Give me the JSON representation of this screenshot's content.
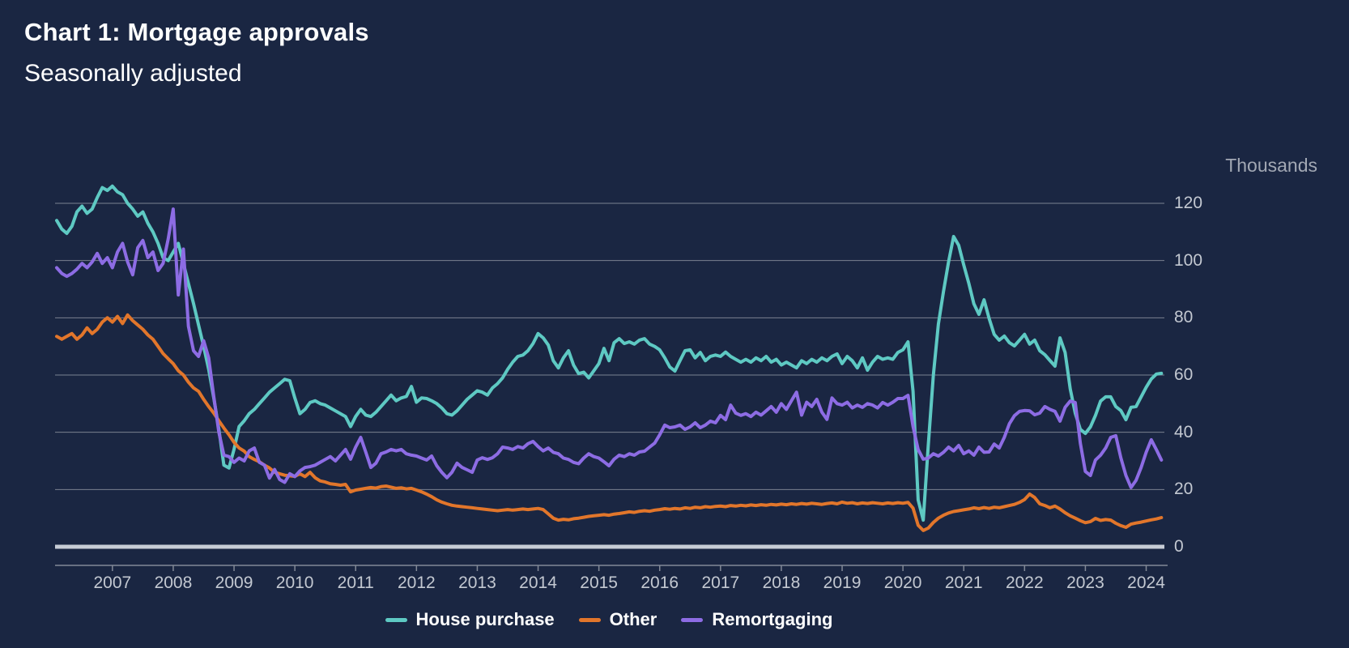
{
  "title": "Chart 1: Mortgage approvals",
  "subtitle": "Seasonally adjusted",
  "y_axis": {
    "unit_label": "Thousands",
    "ticks": [
      0,
      20,
      40,
      60,
      80,
      100,
      120
    ]
  },
  "x_axis": {
    "years": [
      2007,
      2008,
      2009,
      2010,
      2011,
      2012,
      2013,
      2014,
      2015,
      2016,
      2017,
      2018,
      2019,
      2020,
      2021,
      2022,
      2023,
      2024
    ]
  },
  "legend": [
    {
      "label": "House purchase",
      "color": "#5ec9c3"
    },
    {
      "label": "Other",
      "color": "#e2762b"
    },
    {
      "label": "Remortgaging",
      "color": "#8d6ce4"
    }
  ],
  "colors": {
    "background": "#1a2642",
    "gridline": "#7a8191",
    "zero_line": "#c7ccd6",
    "axis_line": "#828997",
    "axis_text": "#c3c8d1",
    "unit_text": "#a2a8b4",
    "title_text": "#ffffff"
  },
  "chart_data": {
    "type": "line",
    "title": "Chart 1: Mortgage approvals",
    "subtitle": "Seasonally adjusted",
    "ylabel": "Thousands",
    "ylim": [
      0,
      120
    ],
    "y_gridlines": [
      20,
      40,
      60,
      80,
      100,
      120
    ],
    "frequency": "monthly",
    "x_start": "2006-02",
    "x_end": "2024-04",
    "x_tick_years": [
      2007,
      2008,
      2009,
      2010,
      2011,
      2012,
      2013,
      2014,
      2015,
      2016,
      2017,
      2018,
      2019,
      2020,
      2021,
      2022,
      2023,
      2024
    ],
    "legend_position": "bottom",
    "series": [
      {
        "name": "House purchase",
        "color": "#5ec9c3",
        "values": [
          114,
          111,
          109.5,
          112,
          117,
          119,
          116.5,
          118,
          122,
          125.5,
          124.5,
          126,
          124,
          123,
          120,
          118,
          115.5,
          117,
          113,
          110,
          106,
          101,
          100,
          103,
          106,
          99,
          92,
          85,
          77.5,
          70,
          62,
          52,
          41,
          28.5,
          27.5,
          34,
          42,
          44,
          46.5,
          48,
          50,
          52,
          54,
          55.5,
          57,
          58.5,
          58,
          52,
          46.5,
          48,
          50.4,
          51,
          50,
          49.5,
          48.5,
          47.5,
          46.5,
          45.5,
          42,
          45.5,
          48,
          46,
          45.5,
          47,
          49,
          51,
          53,
          51,
          52,
          52.5,
          56,
          50.5,
          52,
          51.8,
          51,
          50,
          48.5,
          46.5,
          46,
          47.5,
          49.5,
          51.5,
          53,
          54.5,
          54,
          53,
          55.5,
          57,
          59,
          62,
          64.5,
          66.5,
          67,
          68.5,
          71,
          74.5,
          73,
          70.5,
          65,
          62.5,
          66,
          68.5,
          63.5,
          60.5,
          61,
          59,
          61.5,
          64,
          69.3,
          65,
          71.3,
          72.7,
          71,
          71.6,
          70.8,
          72.2,
          72.7,
          70.8,
          70,
          68.8,
          66,
          62.8,
          61.4,
          65,
          68.5,
          68.8,
          66,
          67.9,
          65,
          66.5,
          67,
          66.5,
          68,
          66.5,
          65.5,
          64.5,
          65.5,
          64.5,
          66,
          65,
          66.5,
          64.5,
          65.5,
          63.5,
          64.5,
          63.5,
          62.5,
          65,
          64,
          65.5,
          64.5,
          66,
          65,
          66.5,
          67.4,
          64,
          66.5,
          65,
          62.5,
          66,
          61.7,
          64.5,
          66.5,
          65.5,
          66,
          65.5,
          67.9,
          68.8,
          71.6,
          54.3,
          16.4,
          9.3,
          35.4,
          60,
          77.8,
          89.2,
          99.6,
          108.4,
          105.3,
          98.5,
          92,
          84.9,
          81.2,
          86.3,
          79.8,
          74.2,
          72.2,
          73.6,
          71.3,
          70.2,
          72.2,
          74.2,
          70.8,
          72.2,
          68.5,
          67.1,
          65.1,
          63.1,
          73,
          67.9,
          55.2,
          46.7,
          41,
          39.6,
          41.9,
          45.9,
          50.9,
          52.4,
          52.4,
          49,
          47.6,
          44.4,
          48.7,
          49,
          52.4,
          55.7,
          58.6,
          60.3,
          60.6
        ]
      },
      {
        "name": "Other",
        "color": "#e2762b",
        "values": [
          73.5,
          72.5,
          73.5,
          74.5,
          72.5,
          74,
          76.5,
          74.5,
          76,
          78.5,
          80,
          78.5,
          80.5,
          78,
          81,
          79,
          77.5,
          76,
          74,
          72.5,
          70,
          67.5,
          65.7,
          64,
          61.5,
          60,
          57.5,
          55.5,
          54.3,
          51.5,
          49,
          46.7,
          44,
          41.5,
          39.1,
          36.5,
          34.5,
          33.4,
          31.5,
          30.5,
          29.7,
          28.5,
          27.5,
          26,
          25.5,
          25,
          24.8,
          24.6,
          25.5,
          24.5,
          26,
          24.1,
          23,
          22.6,
          22,
          21.8,
          21.5,
          21.8,
          19.2,
          19.8,
          20.1,
          20.4,
          20.7,
          20.5,
          21,
          21.2,
          20.8,
          20.4,
          20.6,
          20.2,
          20.4,
          19.8,
          19.2,
          18.4,
          17.5,
          16.4,
          15.6,
          15,
          14.5,
          14.2,
          14,
          13.8,
          13.6,
          13.4,
          13.2,
          13,
          12.8,
          12.6,
          12.8,
          13,
          12.8,
          13,
          13.2,
          13,
          13.2,
          13.4,
          13,
          11.5,
          10,
          9.3,
          9.6,
          9.4,
          9.8,
          10,
          10.3,
          10.6,
          10.8,
          11,
          11.2,
          11,
          11.4,
          11.6,
          11.9,
          12.2,
          12,
          12.4,
          12.6,
          12.4,
          12.8,
          13,
          13.3,
          13.1,
          13.4,
          13.2,
          13.6,
          13.4,
          13.8,
          13.6,
          14,
          13.8,
          14.1,
          14.2,
          14,
          14.4,
          14.2,
          14.5,
          14.3,
          14.6,
          14.4,
          14.7,
          14.5,
          14.8,
          14.6,
          14.9,
          14.7,
          15,
          14.8,
          15.1,
          14.9,
          15.2,
          15,
          14.8,
          15.1,
          15.3,
          15,
          15.6,
          15.2,
          15.4,
          15,
          15.3,
          15.1,
          15.4,
          15.2,
          15,
          15.3,
          15.1,
          15.4,
          15.2,
          15.5,
          13.5,
          7.5,
          5.7,
          6.5,
          8.5,
          10,
          11,
          11.8,
          12.3,
          12.6,
          12.9,
          13.2,
          13.6,
          13.3,
          13.7,
          13.4,
          13.8,
          13.6,
          14,
          14.4,
          14.8,
          15.5,
          16.5,
          18.4,
          17.2,
          15,
          14.4,
          13.6,
          14.2,
          13.2,
          11.9,
          10.8,
          10,
          9.1,
          8.4,
          8.8,
          9.9,
          9.2,
          9.5,
          9.3,
          8.2,
          7.4,
          6.8,
          7.9,
          8.3,
          8.6,
          9,
          9.4,
          9.7,
          10.2
        ]
      },
      {
        "name": "Remortgaging",
        "color": "#8d6ce4",
        "values": [
          97.5,
          95.5,
          94.5,
          95.5,
          97,
          99,
          97.5,
          99.5,
          102.5,
          99,
          101,
          97.5,
          103,
          106,
          99.5,
          95,
          104.5,
          107,
          101,
          103,
          96.5,
          99,
          107.5,
          118,
          88,
          104,
          77,
          68.5,
          66.5,
          72,
          66,
          52.5,
          40,
          32,
          31.5,
          29.5,
          31,
          30,
          33.5,
          34.5,
          29.5,
          28.5,
          24,
          27,
          23.5,
          22.5,
          25.5,
          24.5,
          26.5,
          27.7,
          28,
          28.5,
          29.5,
          30.5,
          31.5,
          30,
          32,
          34,
          30.6,
          34.8,
          38.2,
          33,
          27.7,
          29.2,
          32.5,
          33.1,
          34,
          33.5,
          34,
          32.5,
          32,
          31.7,
          31,
          30.3,
          31.7,
          28.3,
          26,
          24.1,
          26,
          29.2,
          27.7,
          26.9,
          26,
          30.3,
          31.1,
          30.5,
          31.1,
          32.5,
          34.8,
          34.5,
          34,
          35,
          34.5,
          36,
          36.8,
          35,
          33.5,
          34.5,
          33,
          32.5,
          31,
          30.5,
          29.5,
          29,
          31,
          32.5,
          31.5,
          31,
          29.7,
          28.3,
          30.6,
          32,
          31.5,
          32.5,
          32,
          33.1,
          33.4,
          34.8,
          36.2,
          39.1,
          42.5,
          41.6,
          41.9,
          42.5,
          41,
          41.9,
          43.3,
          41.6,
          42.5,
          43.9,
          43.3,
          45.9,
          44.4,
          49.5,
          46.7,
          45.9,
          46.5,
          45.5,
          47,
          46,
          47.5,
          49,
          47,
          50,
          48,
          51,
          54,
          46,
          50.5,
          49,
          51.5,
          47,
          44.5,
          52,
          50,
          49.5,
          50.5,
          48.5,
          49.5,
          48.7,
          50,
          49.5,
          48.5,
          50.4,
          49.5,
          50.5,
          51.8,
          51.8,
          52.9,
          42,
          34,
          30.6,
          31,
          32.5,
          31.7,
          33,
          34.8,
          33.5,
          35.4,
          32.5,
          33.5,
          32,
          34.8,
          33,
          33.1,
          35.9,
          34.5,
          38.2,
          43,
          45.8,
          47.3,
          47.6,
          47.5,
          46.1,
          46.7,
          49,
          48,
          47.3,
          43.9,
          48.7,
          50.9,
          50.4,
          36.2,
          26.3,
          24.9,
          30.3,
          32,
          34.5,
          38.2,
          38.8,
          31.1,
          24.9,
          20.7,
          23.2,
          27.7,
          33,
          37.4,
          34,
          30.3
        ]
      }
    ]
  }
}
